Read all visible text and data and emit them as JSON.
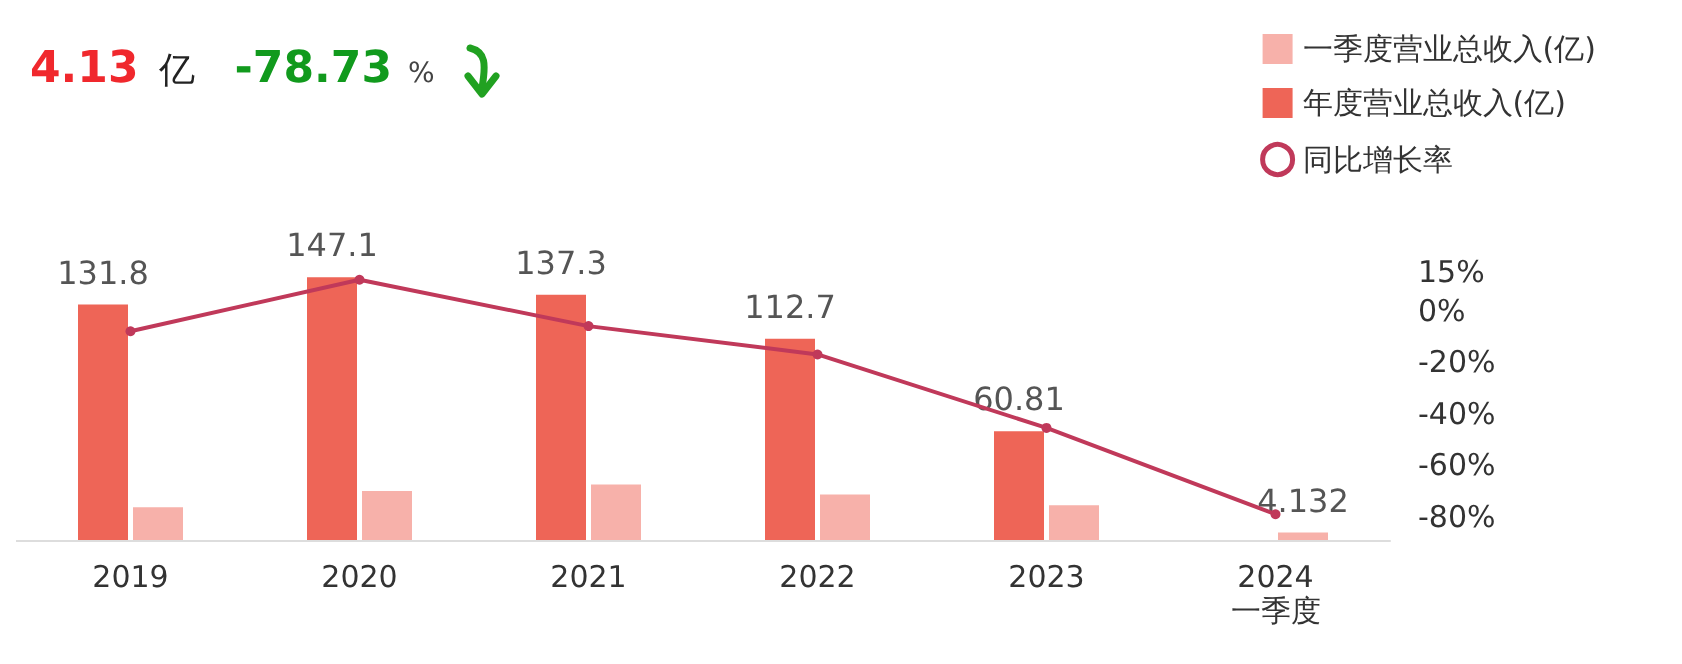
{
  "chart_data": {
    "type": "bar",
    "annotations": [
      "4.13",
      "亿",
      "-78.73",
      "%"
    ],
    "categories": [
      "2019",
      "2020",
      "2021",
      "2022",
      "2023",
      "2024\n一季度"
    ],
    "series": [
      {
        "name": "年度营业总收入(亿)",
        "color": "#ee6557",
        "values": [
          131.8,
          147.1,
          137.3,
          112.7,
          60.81,
          null
        ],
        "value_labels": [
          "131.8",
          "147.1",
          "137.3",
          "112.7",
          "60.81",
          null
        ]
      },
      {
        "name": "一季度营业总收入(亿)",
        "color": "#f7b1aa",
        "values": [
          18.4,
          27.4,
          31,
          25.4,
          19.4,
          4.132
        ],
        "value_labels": [
          null,
          null,
          null,
          null,
          null,
          "4.132"
        ]
      },
      {
        "name": "同比增长率",
        "type": "line",
        "axis": "y2",
        "color": "#c0395a",
        "values": [
          -8,
          12,
          -6,
          -17,
          -45.5,
          -79
        ]
      }
    ],
    "y2lim": [
      -89,
      15
    ],
    "y2ticks": [
      {
        "value": 15,
        "label": "15%"
      },
      {
        "value": 0,
        "label": "0%"
      },
      {
        "value": -20,
        "label": "-20%"
      },
      {
        "value": -40,
        "label": "-40%"
      },
      {
        "value": -60,
        "label": "-60%"
      },
      {
        "value": -80,
        "label": "-80%"
      }
    ],
    "legend": "top right",
    "marker": "circle",
    "line_style": "solid",
    "grid": false
  }
}
